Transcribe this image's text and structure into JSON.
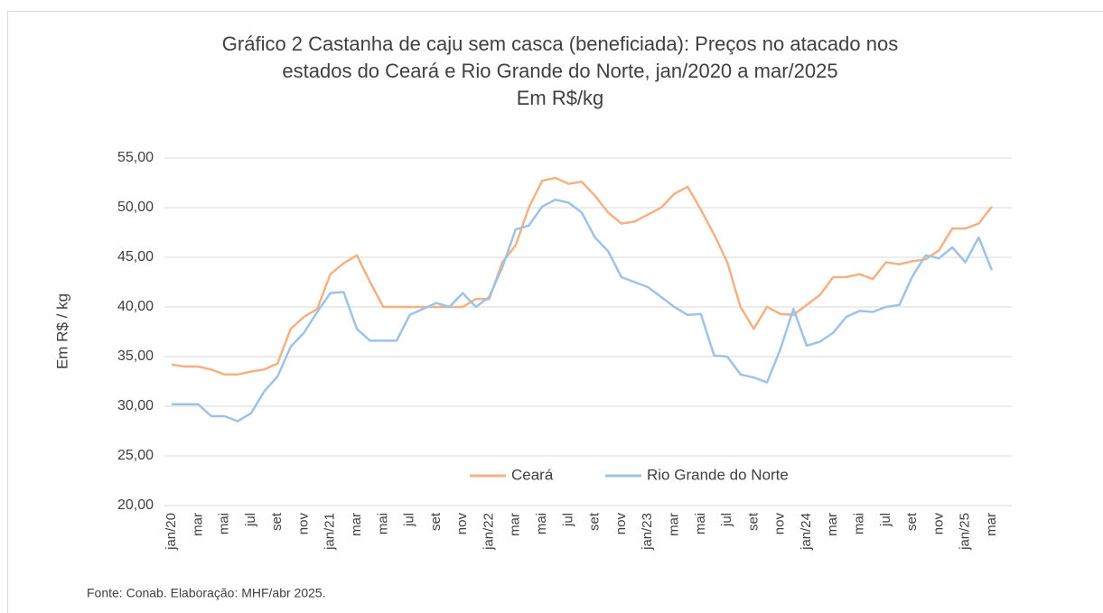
{
  "chart_data": {
    "type": "line",
    "title": [
      "Gráfico 2    Castanha de caju sem casca (beneficiada): Preços no atacado nos",
      "estados do Ceará e Rio Grande do Norte, jan/2020 a mar/2025"
    ],
    "subtitle": "Em R$/kg",
    "y_label": "Em R$ / kg",
    "source": "Fonte: Conab. Elaboração: MHF/abr 2025.",
    "categories": [
      "jan/20",
      null,
      "mar",
      null,
      "mai",
      null,
      "jul",
      null,
      "set",
      null,
      "nov",
      null,
      "jan/21",
      null,
      "mar",
      null,
      "mai",
      null,
      "jul",
      null,
      "set",
      null,
      "nov",
      null,
      "jan/22",
      null,
      "mar",
      null,
      "mai",
      null,
      "jul",
      null,
      "set",
      null,
      "nov",
      null,
      "jan/23",
      null,
      "mar",
      null,
      "mai",
      null,
      "jul",
      null,
      "set",
      null,
      "nov",
      null,
      "jan/24",
      null,
      "mar",
      null,
      "mai",
      null,
      "jul",
      null,
      "set",
      null,
      "nov",
      null,
      "jan/25",
      null,
      "mar"
    ],
    "series": [
      {
        "name": "Ceará",
        "color": "#f4b183",
        "values": [
          34.2,
          34.0,
          34.0,
          33.7,
          33.2,
          33.2,
          33.5,
          33.7,
          34.3,
          37.8,
          39.0,
          39.8,
          43.3,
          44.4,
          45.2,
          42.5,
          40.0,
          40.0,
          40.0,
          40.0,
          40.0,
          40.0,
          40.0,
          40.8,
          40.8,
          44.5,
          46.2,
          50.0,
          52.7,
          53.0,
          52.4,
          52.6,
          51.2,
          49.5,
          48.4,
          48.6,
          49.3,
          50.0,
          51.4,
          52.1,
          49.8,
          47.3,
          44.5,
          40.0,
          37.8,
          40.0,
          39.3,
          39.2,
          40.2,
          41.2,
          43.0,
          43.0,
          43.3,
          42.8,
          44.5,
          44.3,
          44.6,
          44.8,
          45.7,
          47.9,
          47.9,
          48.4,
          50.1
        ]
      },
      {
        "name": "Rio Grande do Norte",
        "color": "#9dc3e6",
        "values": [
          30.2,
          30.2,
          30.2,
          29.0,
          29.0,
          28.5,
          29.3,
          31.5,
          33.0,
          36.0,
          37.4,
          39.5,
          41.4,
          41.5,
          37.8,
          36.6,
          36.6,
          36.6,
          39.2,
          39.8,
          40.4,
          40.0,
          41.4,
          40.0,
          41.0,
          44.0,
          47.8,
          48.2,
          50.1,
          50.8,
          50.5,
          49.5,
          47.0,
          45.6,
          43.0,
          42.5,
          42.0,
          41.0,
          40.0,
          39.2,
          39.3,
          35.1,
          35.0,
          33.2,
          32.9,
          32.4,
          35.7,
          39.8,
          36.1,
          36.5,
          37.4,
          39.0,
          39.6,
          39.5,
          40.0,
          40.2,
          43.1,
          45.2,
          44.9,
          46.0,
          44.5,
          47.0,
          43.7
        ]
      }
    ],
    "ylim": [
      20,
      55
    ],
    "yticks": [
      {
        "value": 20,
        "label": "20,00"
      },
      {
        "value": 25,
        "label": "25,00"
      },
      {
        "value": 30,
        "label": "30,00"
      },
      {
        "value": 35,
        "label": "35,00"
      },
      {
        "value": 40,
        "label": "40,00"
      },
      {
        "value": 45,
        "label": "45,00"
      },
      {
        "value": 50,
        "label": "50,00"
      },
      {
        "value": 55,
        "label": "55,00"
      }
    ],
    "grid": true,
    "legend": "inside-bottom"
  }
}
